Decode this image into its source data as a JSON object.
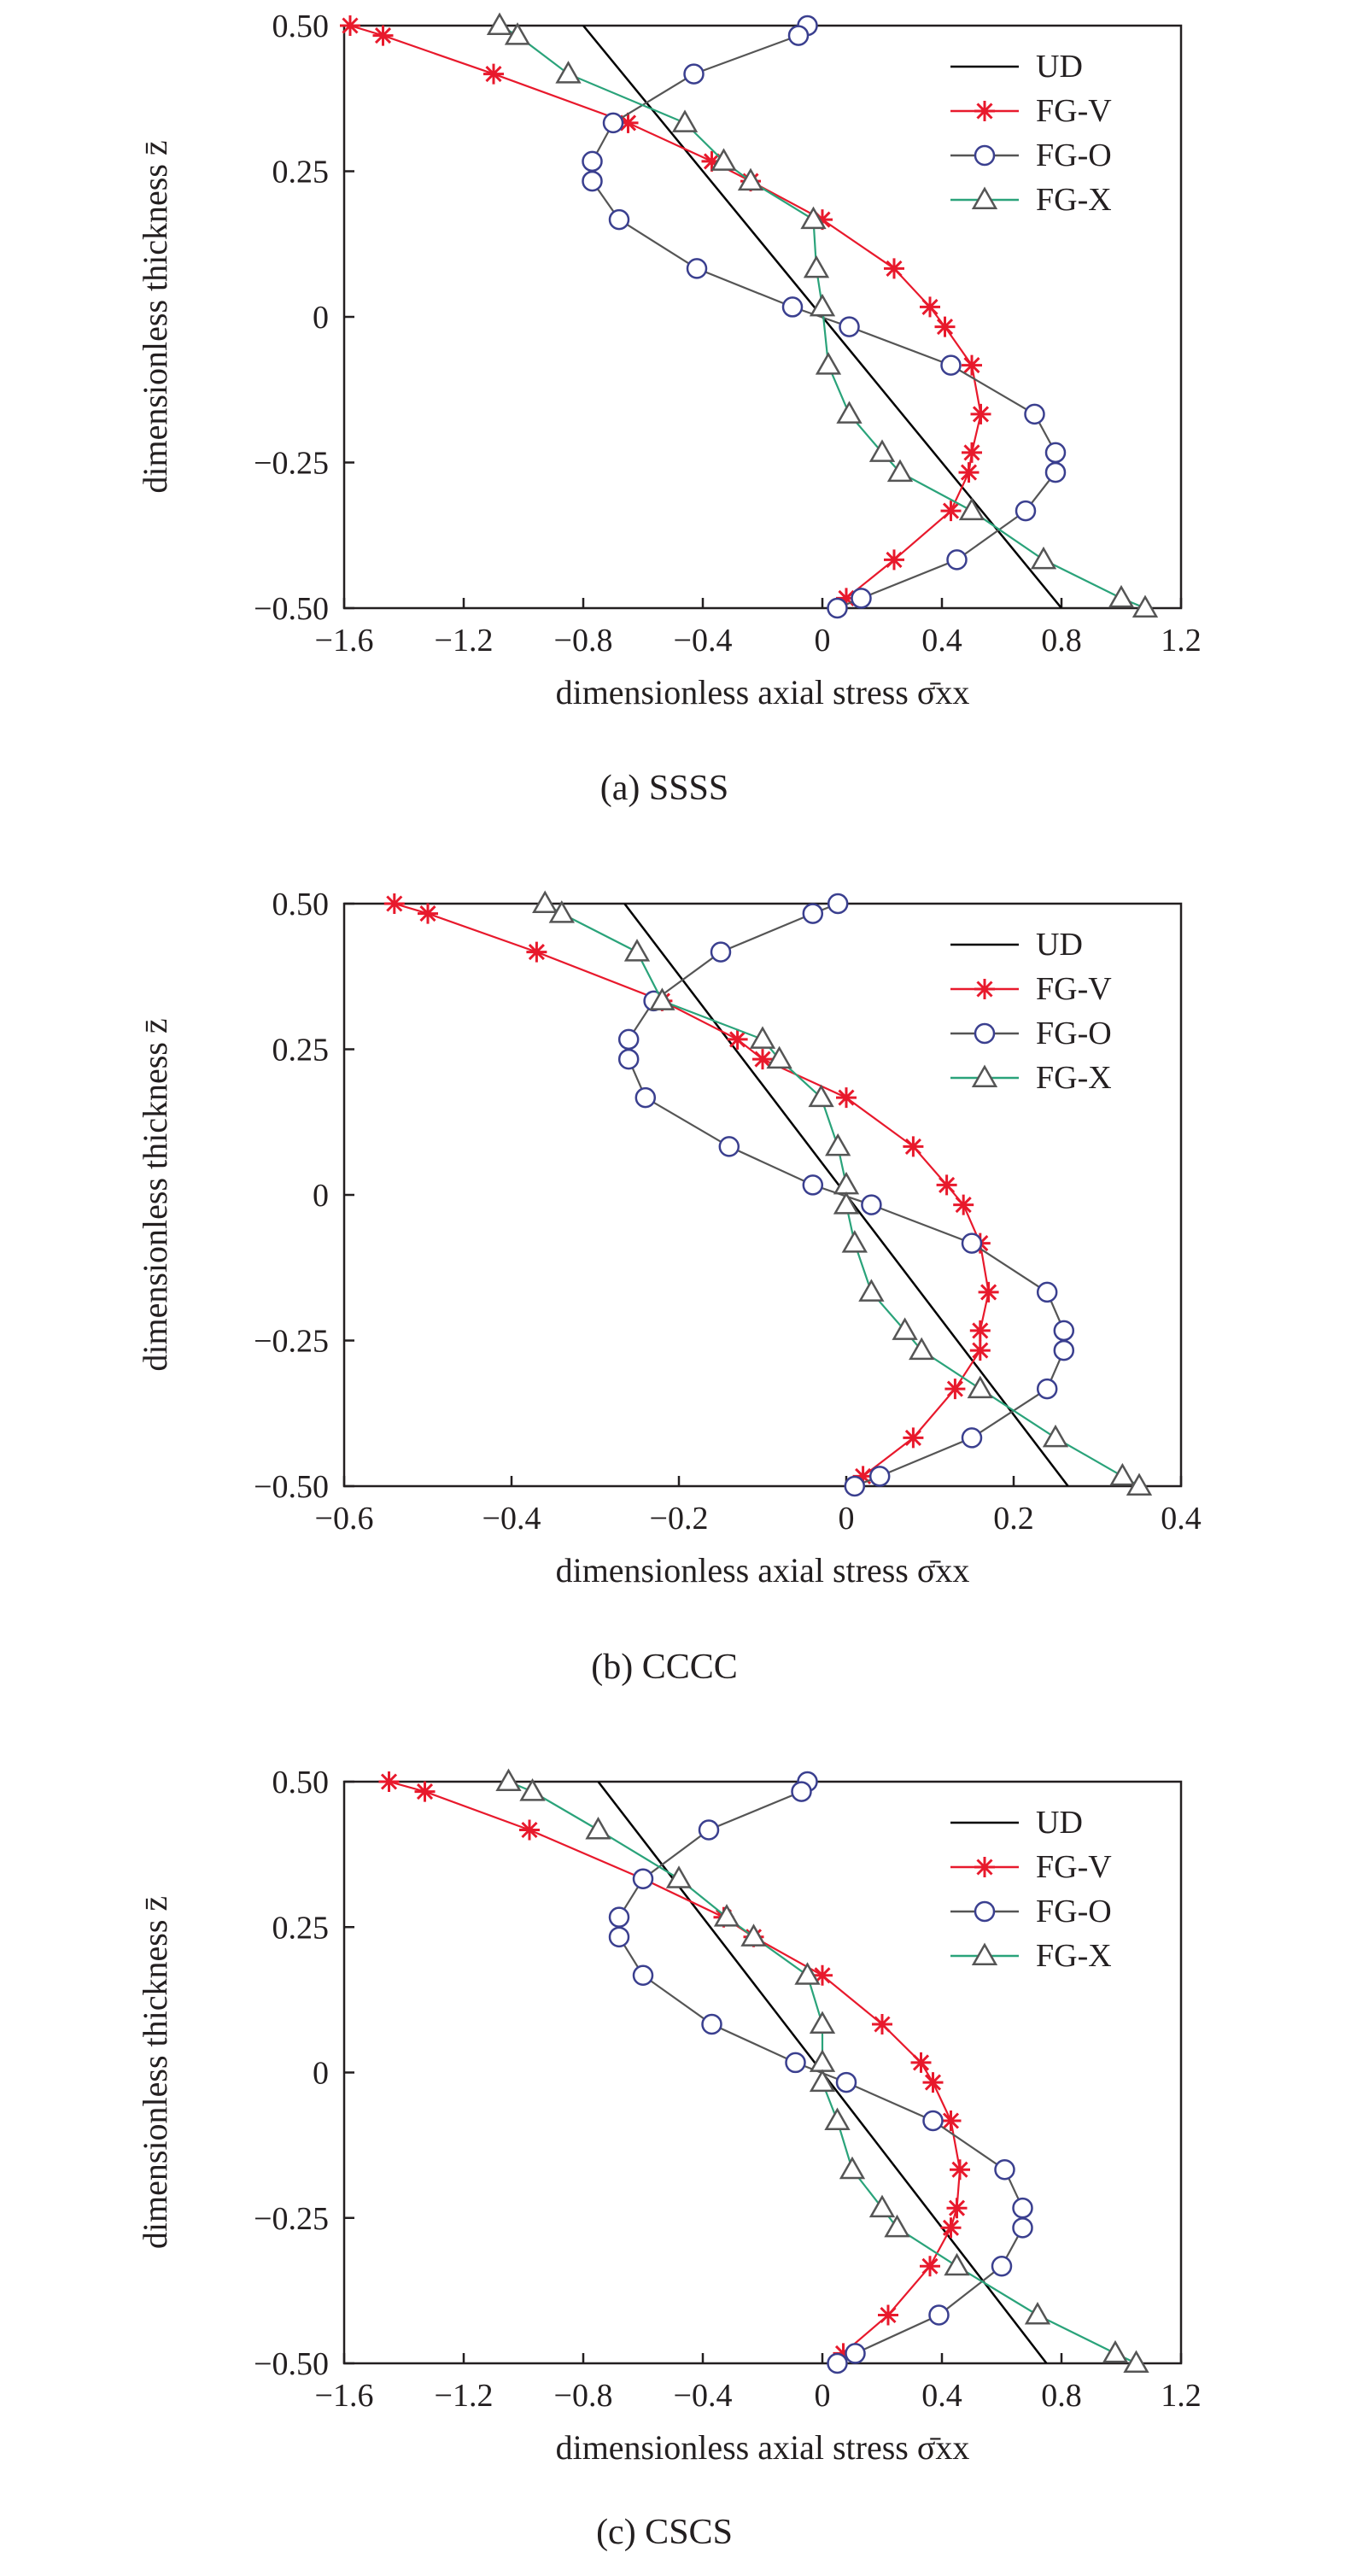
{
  "colors": {
    "UD": "#000000",
    "FG-V": "#e8192c",
    "FG-O": "#3a3f8f",
    "FG-X": "#555555",
    "FG-X-fill": "#2aa37a",
    "axis": "#231f20"
  },
  "chart_data": [
    {
      "type": "line",
      "caption": "(a) SSSS",
      "xlabel": "dimensionless axial stress σ̄xx",
      "ylabel": "dimensionless thickness z̄",
      "xlim": [
        -1.6,
        1.2
      ],
      "ylim": [
        -0.5,
        0.5
      ],
      "xticks": [
        -1.6,
        -1.2,
        -0.8,
        -0.4,
        0,
        0.4,
        0.8,
        1.2
      ],
      "xtick_labels": [
        "−1.6",
        "−1.2",
        "−0.8",
        "−0.4",
        "0",
        "0.4",
        "0.8",
        "1.2"
      ],
      "yticks": [
        -0.5,
        -0.25,
        0,
        0.25,
        0.5
      ],
      "ytick_labels": [
        "−0.50",
        "−0.25",
        "0",
        "0.25",
        "0.50"
      ],
      "legend": [
        "UD",
        "FG-V",
        "FG-O",
        "FG-X"
      ],
      "legend_position": "top-right",
      "series": [
        {
          "name": "UD",
          "marker": "none",
          "points": [
            [
              -0.8,
              0.5
            ],
            [
              0.8,
              -0.5
            ]
          ]
        },
        {
          "name": "FG-V",
          "marker": "star",
          "points": [
            [
              -1.58,
              0.5
            ],
            [
              -1.47,
              0.483
            ],
            [
              -1.1,
              0.417
            ],
            [
              -0.65,
              0.333
            ],
            [
              -0.37,
              0.267
            ],
            [
              -0.24,
              0.233
            ],
            [
              0.0,
              0.167
            ],
            [
              0.24,
              0.083
            ],
            [
              0.36,
              0.017
            ],
            [
              0.41,
              -0.017
            ],
            [
              0.5,
              -0.083
            ],
            [
              0.53,
              -0.167
            ],
            [
              0.5,
              -0.233
            ],
            [
              0.49,
              -0.267
            ],
            [
              0.43,
              -0.333
            ],
            [
              0.24,
              -0.417
            ],
            [
              0.08,
              -0.483
            ],
            [
              0.05,
              -0.5
            ]
          ]
        },
        {
          "name": "FG-O",
          "marker": "circle",
          "points": [
            [
              -0.05,
              0.5
            ],
            [
              -0.08,
              0.483
            ],
            [
              -0.43,
              0.417
            ],
            [
              -0.7,
              0.333
            ],
            [
              -0.77,
              0.267
            ],
            [
              -0.77,
              0.233
            ],
            [
              -0.68,
              0.167
            ],
            [
              -0.42,
              0.083
            ],
            [
              -0.1,
              0.017
            ],
            [
              0.09,
              -0.017
            ],
            [
              0.43,
              -0.083
            ],
            [
              0.71,
              -0.167
            ],
            [
              0.78,
              -0.233
            ],
            [
              0.78,
              -0.267
            ],
            [
              0.68,
              -0.333
            ],
            [
              0.45,
              -0.417
            ],
            [
              0.13,
              -0.483
            ],
            [
              0.05,
              -0.5
            ]
          ]
        },
        {
          "name": "FG-X",
          "marker": "triangle",
          "points": [
            [
              -1.08,
              0.5
            ],
            [
              -1.02,
              0.483
            ],
            [
              -0.85,
              0.417
            ],
            [
              -0.46,
              0.333
            ],
            [
              -0.33,
              0.267
            ],
            [
              -0.24,
              0.233
            ],
            [
              -0.03,
              0.167
            ],
            [
              -0.02,
              0.083
            ],
            [
              0.0,
              0.017
            ],
            [
              0.02,
              -0.083
            ],
            [
              0.09,
              -0.167
            ],
            [
              0.2,
              -0.233
            ],
            [
              0.26,
              -0.267
            ],
            [
              0.5,
              -0.333
            ],
            [
              0.74,
              -0.417
            ],
            [
              1.0,
              -0.483
            ],
            [
              1.08,
              -0.5
            ]
          ]
        }
      ]
    },
    {
      "type": "line",
      "caption": "(b) CCCC",
      "xlabel": "dimensionless axial stress σ̄xx",
      "ylabel": "dimensionless thickness z̄",
      "xlim": [
        -0.6,
        0.4
      ],
      "ylim": [
        -0.5,
        0.5
      ],
      "xticks": [
        -0.6,
        -0.4,
        -0.2,
        0,
        0.2,
        0.4
      ],
      "xtick_labels": [
        "−0.6",
        "−0.4",
        "−0.2",
        "0",
        "0.2",
        "0.4"
      ],
      "yticks": [
        -0.5,
        -0.25,
        0,
        0.25,
        0.5
      ],
      "ytick_labels": [
        "−0.50",
        "−0.25",
        "0",
        "0.25",
        "0.50"
      ],
      "legend": [
        "UD",
        "FG-V",
        "FG-O",
        "FG-X"
      ],
      "legend_position": "top-right",
      "series": [
        {
          "name": "UD",
          "marker": "none",
          "points": [
            [
              -0.265,
              0.5
            ],
            [
              0.265,
              -0.5
            ]
          ]
        },
        {
          "name": "FG-V",
          "marker": "star",
          "points": [
            [
              -0.54,
              0.5
            ],
            [
              -0.5,
              0.483
            ],
            [
              -0.37,
              0.417
            ],
            [
              -0.22,
              0.333
            ],
            [
              -0.13,
              0.267
            ],
            [
              -0.1,
              0.233
            ],
            [
              0.0,
              0.167
            ],
            [
              0.08,
              0.083
            ],
            [
              0.12,
              0.017
            ],
            [
              0.14,
              -0.017
            ],
            [
              0.16,
              -0.083
            ],
            [
              0.17,
              -0.167
            ],
            [
              0.16,
              -0.233
            ],
            [
              0.16,
              -0.267
            ],
            [
              0.13,
              -0.333
            ],
            [
              0.08,
              -0.417
            ],
            [
              0.02,
              -0.483
            ],
            [
              0.01,
              -0.5
            ]
          ]
        },
        {
          "name": "FG-O",
          "marker": "circle",
          "points": [
            [
              -0.01,
              0.5
            ],
            [
              -0.04,
              0.483
            ],
            [
              -0.15,
              0.417
            ],
            [
              -0.23,
              0.333
            ],
            [
              -0.26,
              0.267
            ],
            [
              -0.26,
              0.233
            ],
            [
              -0.24,
              0.167
            ],
            [
              -0.14,
              0.083
            ],
            [
              -0.04,
              0.017
            ],
            [
              0.03,
              -0.017
            ],
            [
              0.15,
              -0.083
            ],
            [
              0.24,
              -0.167
            ],
            [
              0.26,
              -0.233
            ],
            [
              0.26,
              -0.267
            ],
            [
              0.24,
              -0.333
            ],
            [
              0.15,
              -0.417
            ],
            [
              0.04,
              -0.483
            ],
            [
              0.01,
              -0.5
            ]
          ]
        },
        {
          "name": "FG-X",
          "marker": "triangle",
          "points": [
            [
              -0.36,
              0.5
            ],
            [
              -0.34,
              0.483
            ],
            [
              -0.25,
              0.417
            ],
            [
              -0.22,
              0.333
            ],
            [
              -0.1,
              0.267
            ],
            [
              -0.08,
              0.233
            ],
            [
              -0.03,
              0.167
            ],
            [
              -0.01,
              0.083
            ],
            [
              0.0,
              0.017
            ],
            [
              0.0,
              -0.017
            ],
            [
              0.01,
              -0.083
            ],
            [
              0.03,
              -0.167
            ],
            [
              0.07,
              -0.233
            ],
            [
              0.09,
              -0.267
            ],
            [
              0.16,
              -0.333
            ],
            [
              0.25,
              -0.417
            ],
            [
              0.33,
              -0.483
            ],
            [
              0.35,
              -0.5
            ]
          ]
        }
      ]
    },
    {
      "type": "line",
      "caption": "(c) CSCS",
      "xlabel": "dimensionless axial stress σ̄xx",
      "ylabel": "dimensionless thickness z̄",
      "xlim": [
        -1.6,
        1.2
      ],
      "ylim": [
        -0.5,
        0.5
      ],
      "xticks": [
        -1.6,
        -1.2,
        -0.8,
        -0.4,
        0,
        0.4,
        0.8,
        1.2
      ],
      "xtick_labels": [
        "−1.6",
        "−1.2",
        "−0.8",
        "−0.4",
        "0",
        "0.4",
        "0.8",
        "1.2"
      ],
      "yticks": [
        -0.5,
        -0.25,
        0,
        0.25,
        0.5
      ],
      "ytick_labels": [
        "−0.50",
        "−0.25",
        "0",
        "0.25",
        "0.50"
      ],
      "legend": [
        "UD",
        "FG-V",
        "FG-O",
        "FG-X"
      ],
      "legend_position": "top-right",
      "series": [
        {
          "name": "UD",
          "marker": "none",
          "points": [
            [
              -0.75,
              0.5
            ],
            [
              0.75,
              -0.5
            ]
          ]
        },
        {
          "name": "FG-V",
          "marker": "star",
          "points": [
            [
              -1.45,
              0.5
            ],
            [
              -1.33,
              0.483
            ],
            [
              -0.98,
              0.417
            ],
            [
              -0.6,
              0.333
            ],
            [
              -0.33,
              0.267
            ],
            [
              -0.23,
              0.233
            ],
            [
              0.0,
              0.167
            ],
            [
              0.2,
              0.083
            ],
            [
              0.33,
              0.017
            ],
            [
              0.37,
              -0.017
            ],
            [
              0.43,
              -0.083
            ],
            [
              0.46,
              -0.167
            ],
            [
              0.45,
              -0.233
            ],
            [
              0.43,
              -0.267
            ],
            [
              0.36,
              -0.333
            ],
            [
              0.22,
              -0.417
            ],
            [
              0.07,
              -0.483
            ],
            [
              0.05,
              -0.5
            ]
          ]
        },
        {
          "name": "FG-O",
          "marker": "circle",
          "points": [
            [
              -0.05,
              0.5
            ],
            [
              -0.07,
              0.483
            ],
            [
              -0.38,
              0.417
            ],
            [
              -0.6,
              0.333
            ],
            [
              -0.68,
              0.267
            ],
            [
              -0.68,
              0.233
            ],
            [
              -0.6,
              0.167
            ],
            [
              -0.37,
              0.083
            ],
            [
              -0.09,
              0.017
            ],
            [
              0.08,
              -0.017
            ],
            [
              0.37,
              -0.083
            ],
            [
              0.61,
              -0.167
            ],
            [
              0.67,
              -0.233
            ],
            [
              0.67,
              -0.267
            ],
            [
              0.6,
              -0.333
            ],
            [
              0.39,
              -0.417
            ],
            [
              0.11,
              -0.483
            ],
            [
              0.05,
              -0.5
            ]
          ]
        },
        {
          "name": "FG-X",
          "marker": "triangle",
          "points": [
            [
              -1.05,
              0.5
            ],
            [
              -0.97,
              0.483
            ],
            [
              -0.75,
              0.417
            ],
            [
              -0.48,
              0.333
            ],
            [
              -0.32,
              0.267
            ],
            [
              -0.23,
              0.233
            ],
            [
              -0.05,
              0.167
            ],
            [
              0.0,
              0.083
            ],
            [
              0.0,
              0.017
            ],
            [
              0.0,
              -0.017
            ],
            [
              0.05,
              -0.083
            ],
            [
              0.1,
              -0.167
            ],
            [
              0.2,
              -0.233
            ],
            [
              0.25,
              -0.267
            ],
            [
              0.45,
              -0.333
            ],
            [
              0.72,
              -0.417
            ],
            [
              0.98,
              -0.483
            ],
            [
              1.05,
              -0.5
            ]
          ]
        }
      ]
    }
  ]
}
